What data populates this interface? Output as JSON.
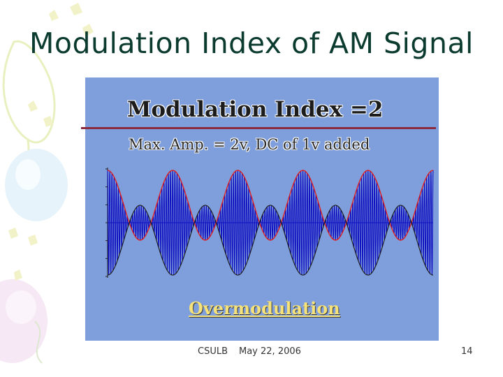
{
  "slide": {
    "title": "Modulation Index of AM Signal"
  },
  "panel": {
    "heading": "Modulation Index =2",
    "subheading": "Max. Amp. = 2v, DC of 1v added",
    "caption": "Overmodulation",
    "background_color": "#7f9fdc"
  },
  "footer": {
    "left": "CSULB",
    "center": "May 22, 2006",
    "page_number": "14"
  },
  "plot": {
    "modulation_index": 2,
    "envelope_color": "#e02020",
    "envelope_lower_color": "#202020",
    "carrier_color": "#1010c0",
    "lobes_large": 5,
    "lobes_small": 5
  }
}
